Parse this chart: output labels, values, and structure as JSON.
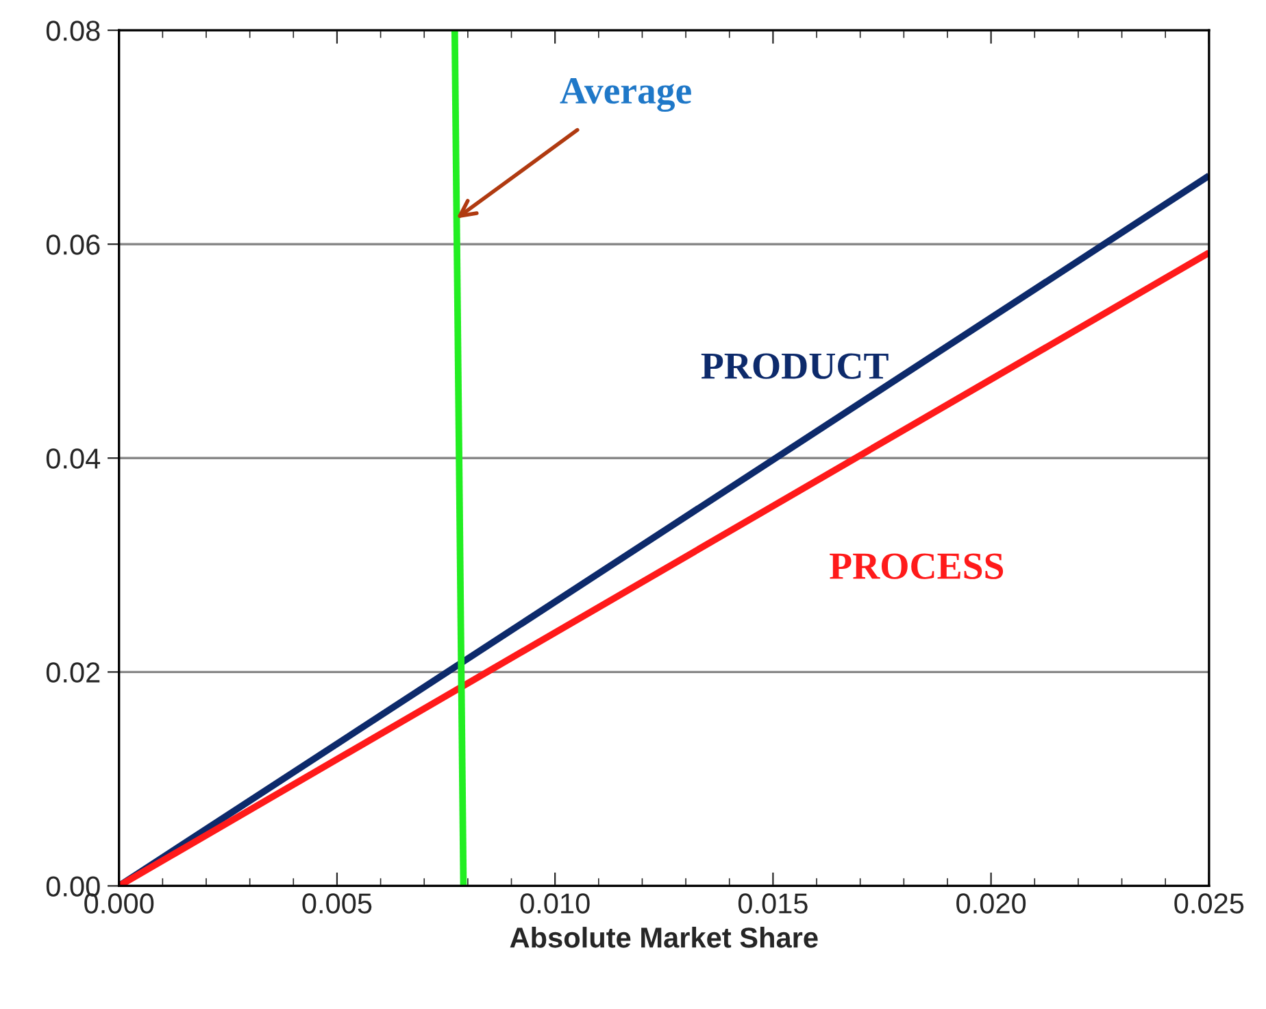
{
  "chart_data": {
    "type": "line",
    "xlabel": "Absolute Market Share",
    "series": [
      {
        "name": "PRODUCT",
        "color": "#0d2a6b",
        "x": [
          0,
          0.025
        ],
        "values": [
          0,
          0.0664
        ]
      },
      {
        "name": "PROCESS",
        "color": "#ff1a1a",
        "x": [
          0,
          0.025
        ],
        "values": [
          0,
          0.0592
        ]
      },
      {
        "color": "#22ee22",
        "x": [
          0.0079,
          0.0077
        ],
        "values": [
          0,
          0.08
        ]
      }
    ],
    "annotations": [
      {
        "text": "Average",
        "x": 0.00774,
        "y": 0.0624
      }
    ],
    "xlim": [
      0,
      0.025
    ],
    "ylim": [
      0,
      0.08
    ],
    "xticks": [
      {
        "value": 0,
        "label": "0.000"
      },
      {
        "value": 0.005,
        "label": "0.005"
      },
      {
        "value": 0.01,
        "label": "0.010"
      },
      {
        "value": 0.015,
        "label": "0.015"
      },
      {
        "value": 0.02,
        "label": "0.020"
      },
      {
        "value": 0.025,
        "label": "0.025"
      }
    ],
    "yticks": [
      {
        "value": 0,
        "label": "0.00"
      },
      {
        "value": 0.02,
        "label": "0.02"
      },
      {
        "value": 0.04,
        "label": "0.04"
      },
      {
        "value": 0.06,
        "label": "0.06"
      },
      {
        "value": 0.08,
        "label": "0.08"
      }
    ],
    "grid": "y",
    "legend": false,
    "marker": "none",
    "line_style": "solid"
  }
}
